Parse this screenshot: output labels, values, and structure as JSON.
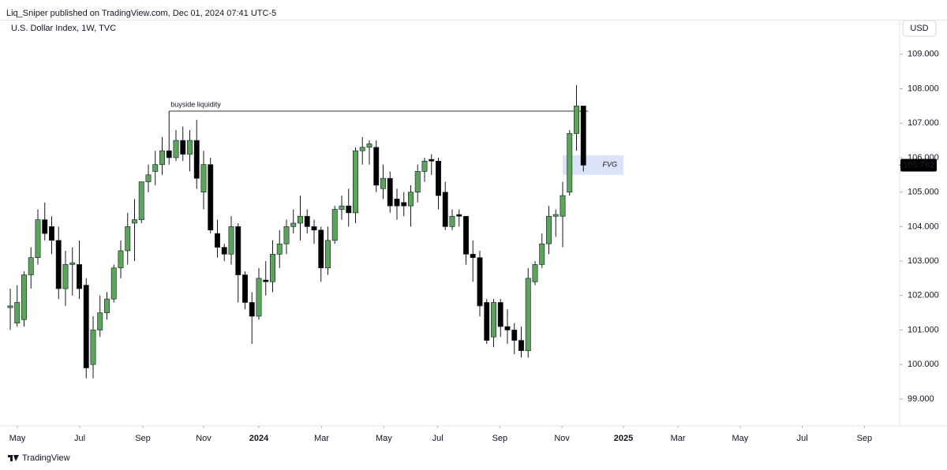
{
  "header": "Liq_Sniper published on TradingView.com, Dec 01, 2024 07:41 UTC-5",
  "footer": "TradingView",
  "chart_data": {
    "type": "candlestick",
    "title": "U.S. Dollar Index, 1W, TVC",
    "currency": "USD",
    "up_color": "#5aa55a",
    "down_color": "#000000",
    "grid": false,
    "xlim": [
      -0.57,
      128.8
    ],
    "ylim": [
      98.22,
      109.43
    ],
    "yticks": [
      {
        "value": 99,
        "label": "99.000"
      },
      {
        "value": 100,
        "label": "100.000"
      },
      {
        "value": 101,
        "label": "101.000"
      },
      {
        "value": 102,
        "label": "102.000"
      },
      {
        "value": 103,
        "label": "103.000"
      },
      {
        "value": 104,
        "label": "104.000"
      },
      {
        "value": 105,
        "label": "105.000"
      },
      {
        "value": 106,
        "label": "106.000"
      },
      {
        "value": 107,
        "label": "107.000"
      },
      {
        "value": 108,
        "label": "108.000"
      },
      {
        "value": 109,
        "label": "109.000"
      }
    ],
    "xticks": [
      {
        "value": 1.03,
        "label": "May"
      },
      {
        "value": 10.06,
        "label": "Jul"
      },
      {
        "value": 19.2,
        "label": "Sep"
      },
      {
        "value": 28.0,
        "label": "Nov"
      },
      {
        "value": 36.0,
        "label": "2024"
      },
      {
        "value": 45.1,
        "label": "Mar"
      },
      {
        "value": 54.1,
        "label": "May"
      },
      {
        "value": 61.9,
        "label": "Jul"
      },
      {
        "value": 70.9,
        "label": "Sep"
      },
      {
        "value": 79.9,
        "label": "Nov"
      },
      {
        "value": 88.8,
        "label": "2025"
      },
      {
        "value": 96.7,
        "label": "Mar"
      },
      {
        "value": 105.7,
        "label": "May"
      },
      {
        "value": 114.7,
        "label": "Jul"
      },
      {
        "value": 123.7,
        "label": "Sep"
      }
    ],
    "open": [
      101.65,
      101.2,
      101.3,
      102.6,
      103.1,
      104.2,
      104.0,
      103.6,
      102.2,
      102.9,
      102.9,
      102.3,
      100.0,
      101.0,
      101.5,
      101.9,
      102.8,
      103.3,
      104.1,
      104.2,
      105.3,
      105.6,
      105.8,
      106.2,
      106.0,
      106.5,
      106.1,
      106.5,
      105.0,
      105.8,
      103.8,
      103.4,
      103.2,
      104.0,
      102.6,
      101.8,
      101.4,
      102.45,
      102.4,
      103.2,
      103.5,
      104.0,
      104.1,
      104.3,
      104.0,
      103.9,
      102.8,
      103.6,
      104.5,
      104.6,
      104.4,
      106.2,
      106.3,
      106.3,
      105.1,
      105.4,
      104.8,
      104.7,
      104.6,
      105.0,
      105.6,
      105.95,
      105.9,
      105.0,
      104.0,
      104.35,
      104.3,
      103.2,
      103.1,
      101.8,
      100.8,
      101.8,
      101.1,
      101.0,
      100.7,
      100.4,
      102.4,
      102.9,
      103.5,
      104.3,
      104.3,
      105.0,
      106.7,
      107.5
    ],
    "high": [
      102.2,
      102.3,
      102.7,
      103.4,
      104.5,
      104.7,
      104.3,
      104.0,
      103.3,
      103.4,
      103.6,
      102.5,
      101.4,
      102.0,
      102.1,
      102.9,
      103.6,
      104.4,
      104.8,
      105.3,
      105.8,
      106.2,
      106.6,
      107.35,
      106.8,
      106.9,
      106.8,
      107.1,
      106.2,
      106.0,
      104.2,
      103.5,
      104.3,
      104.1,
      102.7,
      102.1,
      102.8,
      103.0,
      103.6,
      103.9,
      104.2,
      104.5,
      104.9,
      104.5,
      104.2,
      104.0,
      104.0,
      104.6,
      104.9,
      105.1,
      106.3,
      106.6,
      106.5,
      106.5,
      105.8,
      105.6,
      105.1,
      105.0,
      105.2,
      105.8,
      106.0,
      106.1,
      106.0,
      105.3,
      104.5,
      104.5,
      104.3,
      103.6,
      103.3,
      101.9,
      101.9,
      101.9,
      101.6,
      101.2,
      101.1,
      102.8,
      103.0,
      103.8,
      104.6,
      104.5,
      105.3,
      106.8,
      108.1,
      107.5
    ],
    "low": [
      101.0,
      101.1,
      101.1,
      102.2,
      102.9,
      103.6,
      103.2,
      101.9,
      101.7,
      102.0,
      101.9,
      99.6,
      99.6,
      100.8,
      101.3,
      101.8,
      102.5,
      102.9,
      103.0,
      104.1,
      105.0,
      105.2,
      105.5,
      105.8,
      105.9,
      105.9,
      105.6,
      105.1,
      104.5,
      103.8,
      103.1,
      103.0,
      102.9,
      101.8,
      101.6,
      100.6,
      101.3,
      102.0,
      102.1,
      102.8,
      103.2,
      103.8,
      103.6,
      103.8,
      103.5,
      102.4,
      102.6,
      103.5,
      104.2,
      104.0,
      104.1,
      105.8,
      105.8,
      105.0,
      104.8,
      104.4,
      104.2,
      104.3,
      104.0,
      104.7,
      105.3,
      105.5,
      104.5,
      103.9,
      103.9,
      104.0,
      102.9,
      102.4,
      101.4,
      100.6,
      100.5,
      100.8,
      100.6,
      100.3,
      100.2,
      100.2,
      102.3,
      102.8,
      103.2,
      103.7,
      103.4,
      104.9,
      106.2,
      105.6
    ],
    "close": [
      101.7,
      101.8,
      102.6,
      103.1,
      104.2,
      103.8,
      103.6,
      102.2,
      102.9,
      102.95,
      102.2,
      99.9,
      101.0,
      101.5,
      101.9,
      102.8,
      103.3,
      104.0,
      104.2,
      105.3,
      105.5,
      105.8,
      106.2,
      106.0,
      106.5,
      106.1,
      106.5,
      105.4,
      105.8,
      103.9,
      103.4,
      103.2,
      104.0,
      102.6,
      101.8,
      101.4,
      102.5,
      102.4,
      103.2,
      103.5,
      104.0,
      104.1,
      104.3,
      104.0,
      103.9,
      102.8,
      103.6,
      104.5,
      104.6,
      104.4,
      106.2,
      106.3,
      106.4,
      105.2,
      105.4,
      104.6,
      104.6,
      104.6,
      105.0,
      105.6,
      105.9,
      105.9,
      104.9,
      104.0,
      104.3,
      104.3,
      103.2,
      103.1,
      101.7,
      100.7,
      101.8,
      101.1,
      101.0,
      100.7,
      100.4,
      102.5,
      102.9,
      103.5,
      104.3,
      104.35,
      104.9,
      106.7,
      107.5,
      105.782
    ],
    "last_price": 105.782,
    "annotations": [
      {
        "text": "buyside liquidity",
        "price": 107.35,
        "from": 23,
        "to": 83.7
      },
      {
        "text": "FVG",
        "top": 106.07,
        "bottom": 105.5,
        "from": 80.0,
        "to": 88.8,
        "color": "#dbe3fa"
      }
    ]
  }
}
